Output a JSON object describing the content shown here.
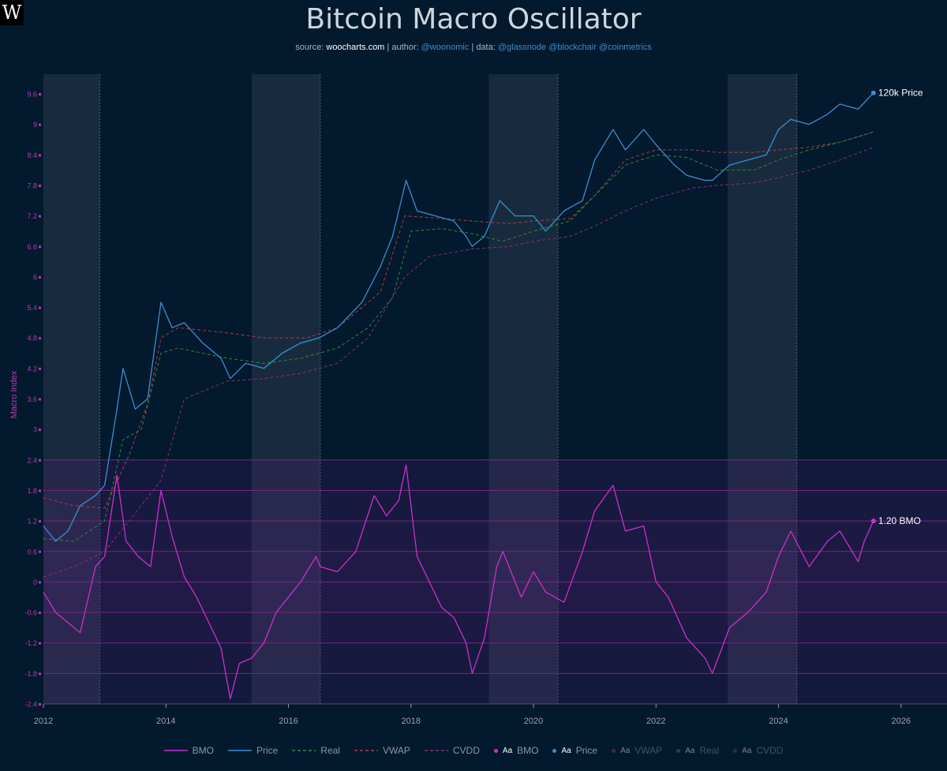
{
  "header": {
    "logo": "W",
    "title": "Bitcoin Macro Oscillator",
    "subtitle": {
      "source_label": "source: ",
      "source": "woocharts.com",
      "author_label": " | author: ",
      "author": "@woonomic",
      "data_label": " | data: ",
      "data": "@glassnode @blockchair @coinmetrics"
    }
  },
  "colors": {
    "background": "#03192d",
    "bmo": "#c832c8",
    "price": "#3a8fd0",
    "real": "#2f8a3a",
    "vwap": "#b23a4a",
    "cvdd": "#8a3070",
    "shade": "#2a3b4d",
    "grid": "#7a2a8a"
  },
  "chart_data": {
    "type": "line",
    "title": "Bitcoin Macro Oscillator",
    "ylabel": "Macro Index",
    "xlabel": "",
    "xlim": [
      2012.0,
      2026.75
    ],
    "ylim": [
      -2.45,
      10.0
    ],
    "x_ticks": [
      "2012",
      "2014",
      "2016",
      "2018",
      "2020",
      "2022",
      "2024",
      "2026"
    ],
    "y_ticks": [
      "9.6",
      "9",
      "8.4",
      "7.8",
      "7.2",
      "6.6",
      "6",
      "5.4",
      "4.8",
      "4.2",
      "3.6",
      "3",
      "2.4",
      "1.8",
      "1.2",
      "0.6",
      "0",
      "-0.6",
      "-1.2",
      "-1.8",
      "-2.4"
    ],
    "shaded_periods": [
      [
        2012.0,
        2012.92
      ],
      [
        2015.4,
        2016.52
      ],
      [
        2019.27,
        2020.4
      ],
      [
        2023.17,
        2024.3
      ]
    ],
    "bmo_bands": [
      -2.4,
      -1.8,
      -1.2,
      -0.6,
      0,
      0.6,
      1.2,
      1.8,
      2.4
    ],
    "annotations": [
      {
        "series": "Price",
        "text": "120k Price",
        "x": 2025.55,
        "y": 9.62
      },
      {
        "series": "BMO",
        "text": "1.20 BMO",
        "x": 2025.55,
        "y": 1.2
      }
    ],
    "series": [
      {
        "name": "BMO",
        "style": "solid",
        "x": [
          2012.0,
          2012.2,
          2012.4,
          2012.6,
          2012.85,
          2013.0,
          2013.2,
          2013.35,
          2013.55,
          2013.75,
          2013.92,
          2014.1,
          2014.3,
          2014.5,
          2014.7,
          2014.9,
          2015.05,
          2015.2,
          2015.4,
          2015.6,
          2015.8,
          2016.0,
          2016.2,
          2016.45,
          2016.52,
          2016.8,
          2017.1,
          2017.4,
          2017.6,
          2017.8,
          2017.92,
          2018.1,
          2018.3,
          2018.5,
          2018.7,
          2018.9,
          2019.0,
          2019.2,
          2019.4,
          2019.5,
          2019.8,
          2020.0,
          2020.2,
          2020.5,
          2020.8,
          2021.0,
          2021.3,
          2021.5,
          2021.8,
          2022.0,
          2022.2,
          2022.5,
          2022.8,
          2022.92,
          2023.2,
          2023.5,
          2023.8,
          2024.0,
          2024.2,
          2024.5,
          2024.8,
          2025.0,
          2025.3,
          2025.4,
          2025.55
        ],
        "y": [
          -0.2,
          -0.6,
          -0.8,
          -1.0,
          0.3,
          0.5,
          2.1,
          0.8,
          0.5,
          0.3,
          1.8,
          0.9,
          0.1,
          -0.3,
          -0.8,
          -1.3,
          -2.3,
          -1.6,
          -1.5,
          -1.2,
          -0.6,
          -0.3,
          0.0,
          0.5,
          0.3,
          0.2,
          0.6,
          1.7,
          1.3,
          1.6,
          2.3,
          0.5,
          0.0,
          -0.5,
          -0.7,
          -1.2,
          -1.8,
          -1.1,
          0.3,
          0.6,
          -0.3,
          0.2,
          -0.2,
          -0.4,
          0.6,
          1.4,
          1.9,
          1.0,
          1.1,
          0.0,
          -0.3,
          -1.1,
          -1.5,
          -1.8,
          -0.9,
          -0.6,
          -0.2,
          0.5,
          1.0,
          0.3,
          0.8,
          1.0,
          0.4,
          0.8,
          1.2
        ]
      },
      {
        "name": "Price",
        "style": "solid",
        "x": [
          2012.0,
          2012.2,
          2012.4,
          2012.6,
          2012.85,
          2013.0,
          2013.2,
          2013.3,
          2013.5,
          2013.7,
          2013.92,
          2014.1,
          2014.3,
          2014.6,
          2014.9,
          2015.05,
          2015.3,
          2015.6,
          2015.9,
          2016.2,
          2016.5,
          2016.8,
          2017.2,
          2017.5,
          2017.7,
          2017.92,
          2018.1,
          2018.4,
          2018.7,
          2018.9,
          2019.0,
          2019.2,
          2019.45,
          2019.7,
          2020.0,
          2020.2,
          2020.5,
          2020.8,
          2021.0,
          2021.3,
          2021.5,
          2021.8,
          2022.0,
          2022.3,
          2022.5,
          2022.8,
          2022.92,
          2023.2,
          2023.5,
          2023.8,
          2024.0,
          2024.2,
          2024.5,
          2024.8,
          2025.0,
          2025.3,
          2025.55
        ],
        "y": [
          1.1,
          0.8,
          1.0,
          1.5,
          1.7,
          1.9,
          3.4,
          4.2,
          3.4,
          3.6,
          5.5,
          5.0,
          5.1,
          4.7,
          4.4,
          4.0,
          4.3,
          4.2,
          4.5,
          4.7,
          4.8,
          5.0,
          5.5,
          6.2,
          6.8,
          7.9,
          7.3,
          7.2,
          7.1,
          6.8,
          6.6,
          6.8,
          7.5,
          7.2,
          7.2,
          6.9,
          7.3,
          7.5,
          8.3,
          8.9,
          8.5,
          8.9,
          8.6,
          8.2,
          8.0,
          7.9,
          7.9,
          8.2,
          8.3,
          8.4,
          8.9,
          9.1,
          9.0,
          9.2,
          9.4,
          9.3,
          9.62
        ]
      },
      {
        "name": "Real",
        "style": "dashed",
        "x": [
          2012.0,
          2012.5,
          2013.0,
          2013.3,
          2013.6,
          2013.92,
          2014.2,
          2014.6,
          2015.0,
          2015.6,
          2016.2,
          2016.8,
          2017.3,
          2017.7,
          2018.0,
          2018.5,
          2019.0,
          2019.5,
          2020.0,
          2020.6,
          2021.0,
          2021.5,
          2022.0,
          2022.5,
          2023.0,
          2023.6,
          2024.0,
          2024.5,
          2025.0,
          2025.55
        ],
        "y": [
          0.85,
          0.8,
          1.2,
          2.8,
          3.0,
          4.5,
          4.6,
          4.5,
          4.4,
          4.3,
          4.4,
          4.6,
          5.0,
          5.6,
          6.9,
          6.95,
          6.85,
          6.7,
          6.9,
          7.1,
          7.6,
          8.2,
          8.4,
          8.35,
          8.1,
          8.1,
          8.3,
          8.5,
          8.65,
          8.85
        ]
      },
      {
        "name": "VWAP",
        "style": "dashed",
        "x": [
          2012.0,
          2012.5,
          2013.0,
          2013.4,
          2013.7,
          2013.92,
          2014.2,
          2015.0,
          2015.6,
          2016.3,
          2016.8,
          2017.5,
          2017.9,
          2018.5,
          2019.0,
          2019.6,
          2020.0,
          2020.6,
          2021.0,
          2021.5,
          2022.0,
          2022.6,
          2023.0,
          2023.6,
          2024.0,
          2024.5,
          2025.0,
          2025.55
        ],
        "y": [
          1.65,
          1.5,
          1.45,
          2.5,
          3.5,
          4.8,
          5.0,
          4.9,
          4.8,
          4.8,
          5.0,
          5.7,
          7.2,
          7.15,
          7.1,
          7.05,
          7.1,
          7.15,
          7.6,
          8.3,
          8.5,
          8.5,
          8.45,
          8.45,
          8.5,
          8.55,
          8.65,
          8.85
        ]
      },
      {
        "name": "CVDD",
        "style": "dashed",
        "x": [
          2012.0,
          2012.5,
          2013.0,
          2013.4,
          2013.92,
          2014.3,
          2015.0,
          2015.6,
          2016.2,
          2016.8,
          2017.3,
          2017.9,
          2018.3,
          2019.0,
          2019.6,
          2020.0,
          2020.6,
          2021.0,
          2021.5,
          2022.0,
          2022.6,
          2023.0,
          2023.6,
          2024.0,
          2024.5,
          2025.0,
          2025.55
        ],
        "y": [
          0.1,
          0.3,
          0.6,
          1.2,
          2.0,
          3.6,
          3.95,
          4.0,
          4.1,
          4.3,
          4.8,
          6.0,
          6.4,
          6.55,
          6.6,
          6.7,
          6.8,
          7.0,
          7.3,
          7.55,
          7.75,
          7.8,
          7.85,
          7.95,
          8.1,
          8.3,
          8.55
        ]
      }
    ]
  },
  "legend": {
    "items": [
      {
        "label": "BMO",
        "kind": "line",
        "color": "#c832c8",
        "dash": false,
        "opacity": 1
      },
      {
        "label": "Price",
        "kind": "line",
        "color": "#3a8fd0",
        "dash": false,
        "opacity": 1
      },
      {
        "label": "Real",
        "kind": "line",
        "color": "#2f8a3a",
        "dash": true,
        "opacity": 1
      },
      {
        "label": "VWAP",
        "kind": "line",
        "color": "#b23a4a",
        "dash": true,
        "opacity": 1
      },
      {
        "label": "CVDD",
        "kind": "line",
        "color": "#8a3070",
        "dash": true,
        "opacity": 1
      },
      {
        "label": "BMO",
        "kind": "text",
        "aa": "Aa",
        "color": "#c832c8",
        "opacity": 1
      },
      {
        "label": "Price",
        "kind": "text",
        "aa": "Aa",
        "color": "#3a8fd0",
        "opacity": 1
      },
      {
        "label": "VWAP",
        "kind": "text",
        "aa": "Aa",
        "color": "#b23a4a",
        "opacity": 0.45
      },
      {
        "label": "Real",
        "kind": "text",
        "aa": "Aa",
        "color": "#2f8a3a",
        "opacity": 0.45
      },
      {
        "label": "CVDD",
        "kind": "text",
        "aa": "Aa",
        "color": "#8a3070",
        "opacity": 0.45
      }
    ]
  }
}
